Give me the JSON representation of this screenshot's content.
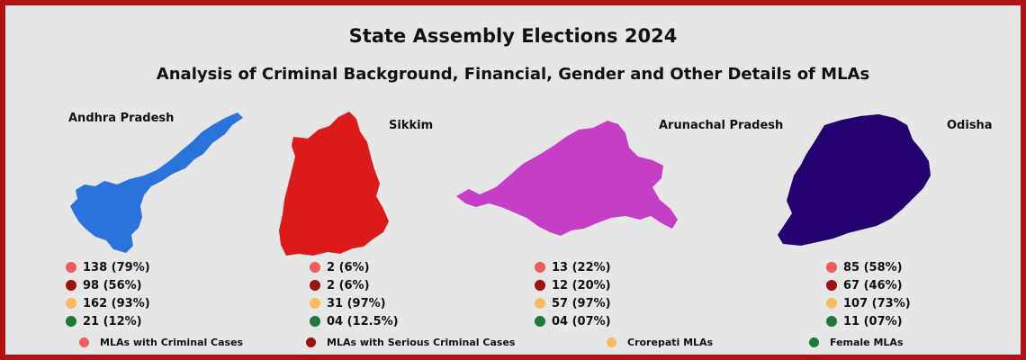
{
  "title": "State Assembly Elections 2024",
  "subtitle": "Analysis of Criminal Background, Financial, Gender and Other Details of MLAs",
  "colors": {
    "criminal": "#f15b5b",
    "serious": "#a10f0f",
    "crorepati": "#f9bb5b",
    "female": "#1e7a35",
    "andhra_map": "#2a73dc",
    "sikkim_map": "#dc1a1a",
    "arunachal_map": "#c63dc6",
    "odisha_map": "#23006f"
  },
  "states": [
    {
      "name": "Andhra Pradesh",
      "map_icon": "andhra-pradesh-map",
      "stats": [
        "138 (79%)",
        "98 (56%)",
        "162 (93%)",
        "21 (12%)"
      ]
    },
    {
      "name": "Sikkim",
      "map_icon": "sikkim-map",
      "stats": [
        "2 (6%)",
        "2 (6%)",
        "31 (97%)",
        "04 (12.5%)"
      ]
    },
    {
      "name": "Arunachal Pradesh",
      "map_icon": "arunachal-pradesh-map",
      "stats": [
        "13 (22%)",
        "12 (20%)",
        "57 (97%)",
        "04 (07%)"
      ]
    },
    {
      "name": "Odisha",
      "map_icon": "odisha-map",
      "stats": [
        "85 (58%)",
        "67 (46%)",
        "107 (73%)",
        "11 (07%)"
      ]
    }
  ],
  "legend": [
    {
      "label": "MLAs with Criminal Cases"
    },
    {
      "label": "MLAs with Serious Criminal Cases"
    },
    {
      "label": "Crorepati MLAs"
    },
    {
      "label": "Female MLAs"
    }
  ]
}
